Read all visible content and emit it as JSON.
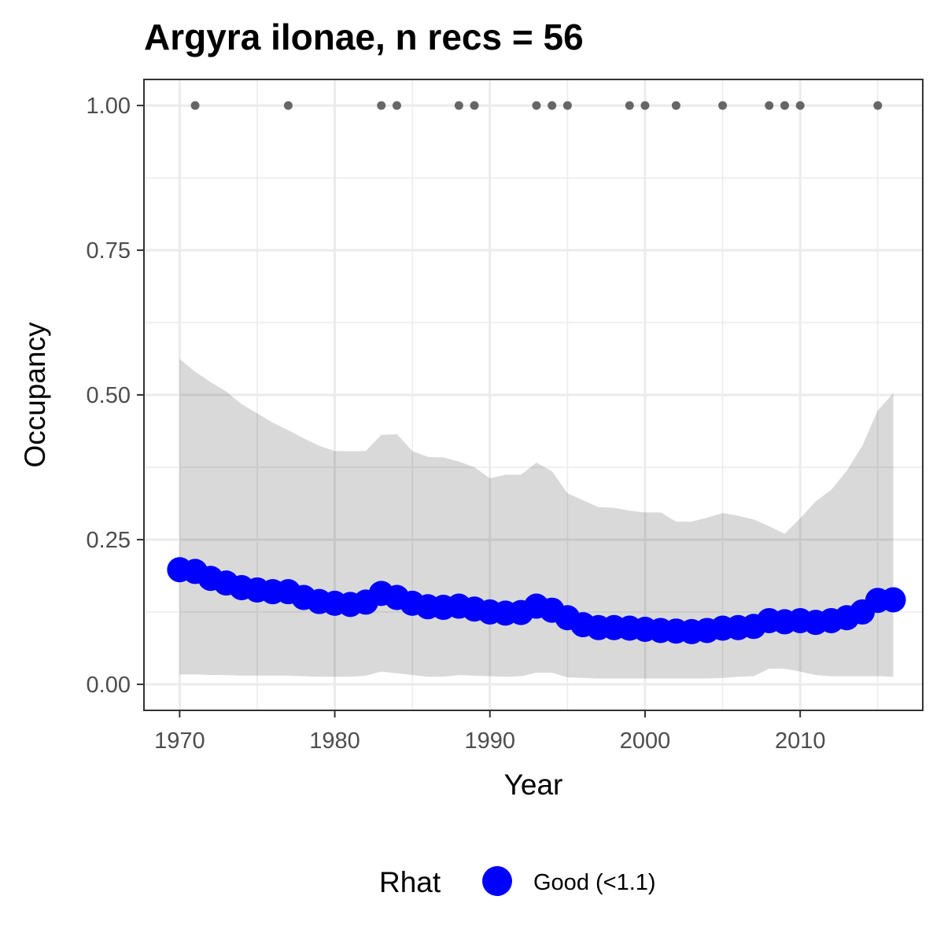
{
  "chart_data": {
    "type": "line",
    "title": "Argyra ilonae, n recs = 56",
    "xlabel": "Year",
    "ylabel": "Occupancy",
    "xlim": [
      1967.7,
      2017.9
    ],
    "ylim": [
      -0.045,
      1.045
    ],
    "x_ticks": [
      1970,
      1980,
      1990,
      2000,
      2010
    ],
    "x_tick_labels": [
      "1970",
      "1980",
      "1990",
      "2000",
      "2010"
    ],
    "y_ticks": [
      0,
      0.25,
      0.5,
      0.75,
      1
    ],
    "y_tick_labels": [
      "0.00",
      "0.25",
      "0.50",
      "0.75",
      "1.00"
    ],
    "grid": true,
    "legend": {
      "title": "Rhat",
      "position": "bottom",
      "entries": [
        {
          "label": "Good (<1.1)",
          "color": "#0000ff"
        }
      ]
    },
    "colors": {
      "estimate": "#0000ff",
      "ribbon": "#d9d9d9",
      "records": "#666666",
      "grid": "#ebebeb",
      "panel_border": "#333333"
    },
    "series": [
      {
        "x": [
          1970,
          1971,
          1972,
          1973,
          1974,
          1975,
          1976,
          1977,
          1978,
          1979,
          1980,
          1981,
          1982,
          1983,
          1984,
          1985,
          1986,
          1987,
          1988,
          1989,
          1990,
          1991,
          1992,
          1993,
          1994,
          1995,
          1996,
          1997,
          1998,
          1999,
          2000,
          2001,
          2002,
          2003,
          2004,
          2005,
          2006,
          2007,
          2008,
          2009,
          2010,
          2011,
          2012,
          2013,
          2014,
          2015,
          2016
        ],
        "y": [
          0.198,
          0.195,
          0.183,
          0.175,
          0.167,
          0.163,
          0.16,
          0.16,
          0.15,
          0.143,
          0.14,
          0.138,
          0.142,
          0.157,
          0.15,
          0.14,
          0.134,
          0.133,
          0.135,
          0.13,
          0.125,
          0.123,
          0.124,
          0.135,
          0.128,
          0.115,
          0.103,
          0.098,
          0.098,
          0.097,
          0.095,
          0.093,
          0.092,
          0.091,
          0.093,
          0.097,
          0.098,
          0.1,
          0.11,
          0.108,
          0.11,
          0.107,
          0.11,
          0.115,
          0.125,
          0.145,
          0.146
        ],
        "lower": [
          0.017,
          0.017,
          0.016,
          0.016,
          0.015,
          0.015,
          0.015,
          0.015,
          0.014,
          0.013,
          0.013,
          0.013,
          0.015,
          0.022,
          0.019,
          0.016,
          0.013,
          0.013,
          0.016,
          0.015,
          0.014,
          0.013,
          0.014,
          0.02,
          0.02,
          0.012,
          0.011,
          0.01,
          0.01,
          0.01,
          0.01,
          0.01,
          0.01,
          0.01,
          0.01,
          0.011,
          0.013,
          0.014,
          0.027,
          0.027,
          0.022,
          0.016,
          0.014,
          0.014,
          0.014,
          0.014,
          0.013
        ],
        "upper": [
          0.562,
          0.54,
          0.522,
          0.506,
          0.484,
          0.468,
          0.452,
          0.439,
          0.425,
          0.412,
          0.403,
          0.403,
          0.403,
          0.431,
          0.432,
          0.403,
          0.393,
          0.392,
          0.385,
          0.375,
          0.356,
          0.362,
          0.362,
          0.383,
          0.368,
          0.33,
          0.318,
          0.306,
          0.305,
          0.3,
          0.297,
          0.297,
          0.281,
          0.281,
          0.288,
          0.296,
          0.291,
          0.285,
          0.273,
          0.26,
          0.287,
          0.316,
          0.336,
          0.369,
          0.412,
          0.473,
          0.503
        ]
      }
    ],
    "records": {
      "x": [
        1971,
        1977,
        1983,
        1984,
        1988,
        1989,
        1993,
        1994,
        1995,
        1999,
        2000,
        2002,
        2005,
        2008,
        2009,
        2010,
        2015
      ],
      "y": [
        1,
        1,
        1,
        1,
        1,
        1,
        1,
        1,
        1,
        1,
        1,
        1,
        1,
        1,
        1,
        1,
        1
      ]
    }
  }
}
